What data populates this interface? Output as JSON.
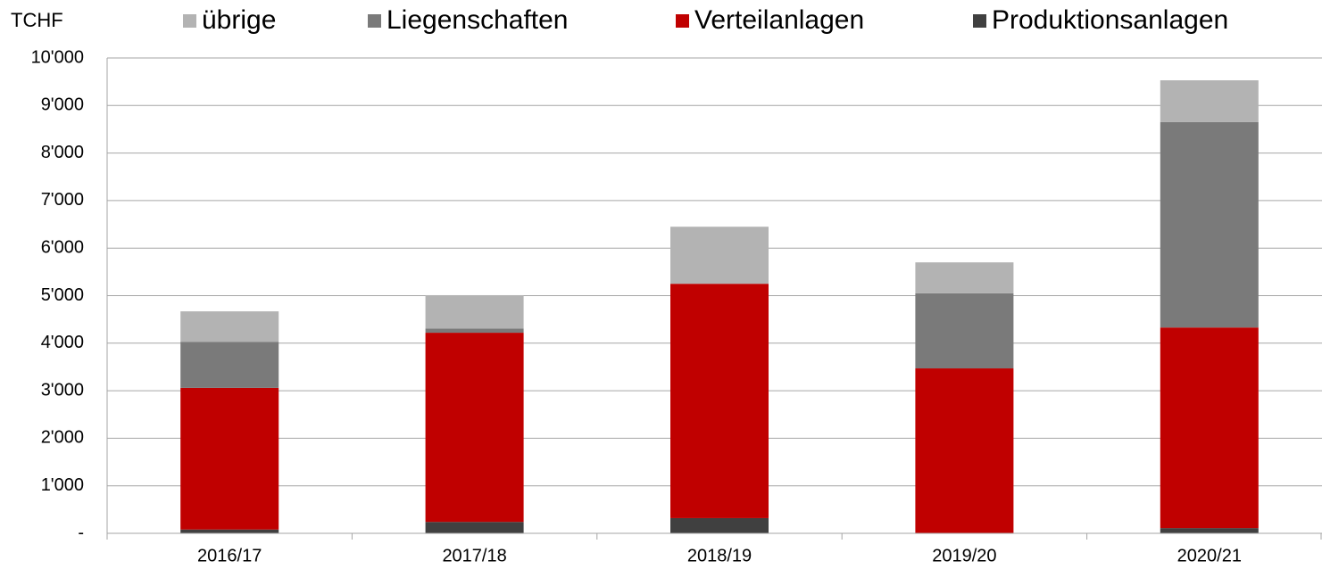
{
  "chart_data": {
    "type": "stacked_bar",
    "y_label": "TCHF",
    "categories": [
      "2016/17",
      "2017/18",
      "2018/19",
      "2019/20",
      "2020/21"
    ],
    "series": [
      {
        "name": "Produktionsanlagen",
        "color": "#404040",
        "values": [
          80,
          240,
          320,
          0,
          110
        ]
      },
      {
        "name": "Verteilanlagen",
        "color": "#c00000",
        "values": [
          2980,
          3980,
          4930,
          3470,
          4220
        ]
      },
      {
        "name": "Liegenschaften",
        "color": "#7a7a7a",
        "values": [
          970,
          90,
          0,
          1580,
          4320
        ]
      },
      {
        "name": "übrige",
        "color": "#b3b3b3",
        "values": [
          640,
          700,
          1200,
          650,
          880
        ]
      }
    ],
    "ylim": [
      0,
      10000
    ],
    "yticks": [
      {
        "value": 0,
        "label": "-"
      },
      {
        "value": 1000,
        "label": "1'000"
      },
      {
        "value": 2000,
        "label": "2'000"
      },
      {
        "value": 3000,
        "label": "3'000"
      },
      {
        "value": 4000,
        "label": "4'000"
      },
      {
        "value": 5000,
        "label": "5'000"
      },
      {
        "value": 6000,
        "label": "6'000"
      },
      {
        "value": 7000,
        "label": "7'000"
      },
      {
        "value": 8000,
        "label": "8'000"
      },
      {
        "value": 9000,
        "label": "9'000"
      },
      {
        "value": 10000,
        "label": "10'000"
      }
    ],
    "grid": true
  }
}
